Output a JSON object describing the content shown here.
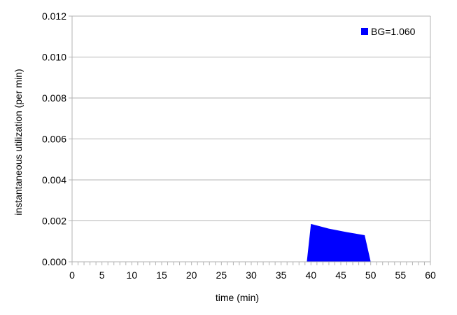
{
  "chart_data": {
    "type": "area",
    "title": "",
    "xlabel": "time (min)",
    "ylabel": "instantaneous utilization (per min)",
    "xlim": [
      0,
      60
    ],
    "ylim": [
      0,
      0.012
    ],
    "x_ticks": [
      "0",
      "5",
      "10",
      "15",
      "20",
      "25",
      "30",
      "35",
      "40",
      "45",
      "50",
      "55",
      "60"
    ],
    "y_ticks": [
      "0.000",
      "0.002",
      "0.004",
      "0.006",
      "0.008",
      "0.010",
      "0.012"
    ],
    "grid": true,
    "legend_position": "top-right",
    "series": [
      {
        "name": "BG=1.060",
        "color": "#0000ff",
        "x": [
          39.3,
          40,
          43,
          46,
          49,
          50
        ],
        "y": [
          0,
          0.00185,
          0.00162,
          0.00145,
          0.0013,
          0
        ]
      }
    ]
  }
}
